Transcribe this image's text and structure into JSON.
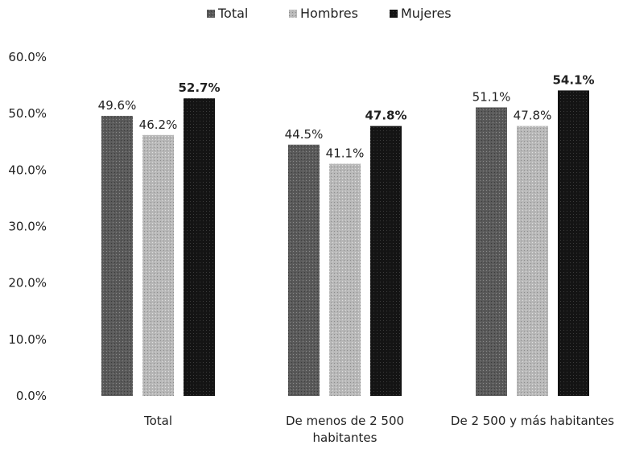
{
  "chart_data": {
    "type": "bar",
    "title": "",
    "xlabel": "",
    "ylabel": "",
    "categories": [
      [
        "Total"
      ],
      [
        "De menos de 2 500",
        "habitantes"
      ],
      [
        "De 2 500 y más habitantes"
      ]
    ],
    "series": [
      {
        "name": "Total",
        "values": [
          49.6,
          44.5,
          51.1
        ],
        "labels": [
          "49.6%",
          "44.5%",
          "51.1%"
        ],
        "color": "#5a5a5a"
      },
      {
        "name": "Hombres",
        "values": [
          46.2,
          41.1,
          47.8
        ],
        "labels": [
          "46.2%",
          "41.1%",
          "47.8%"
        ],
        "color": "#b4b4b4"
      },
      {
        "name": "Mujeres",
        "values": [
          52.7,
          47.8,
          54.1
        ],
        "labels": [
          "52.7%",
          "47.8%",
          "54.1%"
        ],
        "color": "#141414"
      }
    ],
    "ylim": [
      0,
      60
    ],
    "yticks": [
      0,
      10,
      20,
      30,
      40,
      50,
      60
    ],
    "ytick_labels": [
      "0.0%",
      "10.0%",
      "20.0%",
      "30.0%",
      "40.0%",
      "50.0%",
      "60.0%"
    ],
    "legend_position": "top-center",
    "grid": false
  }
}
